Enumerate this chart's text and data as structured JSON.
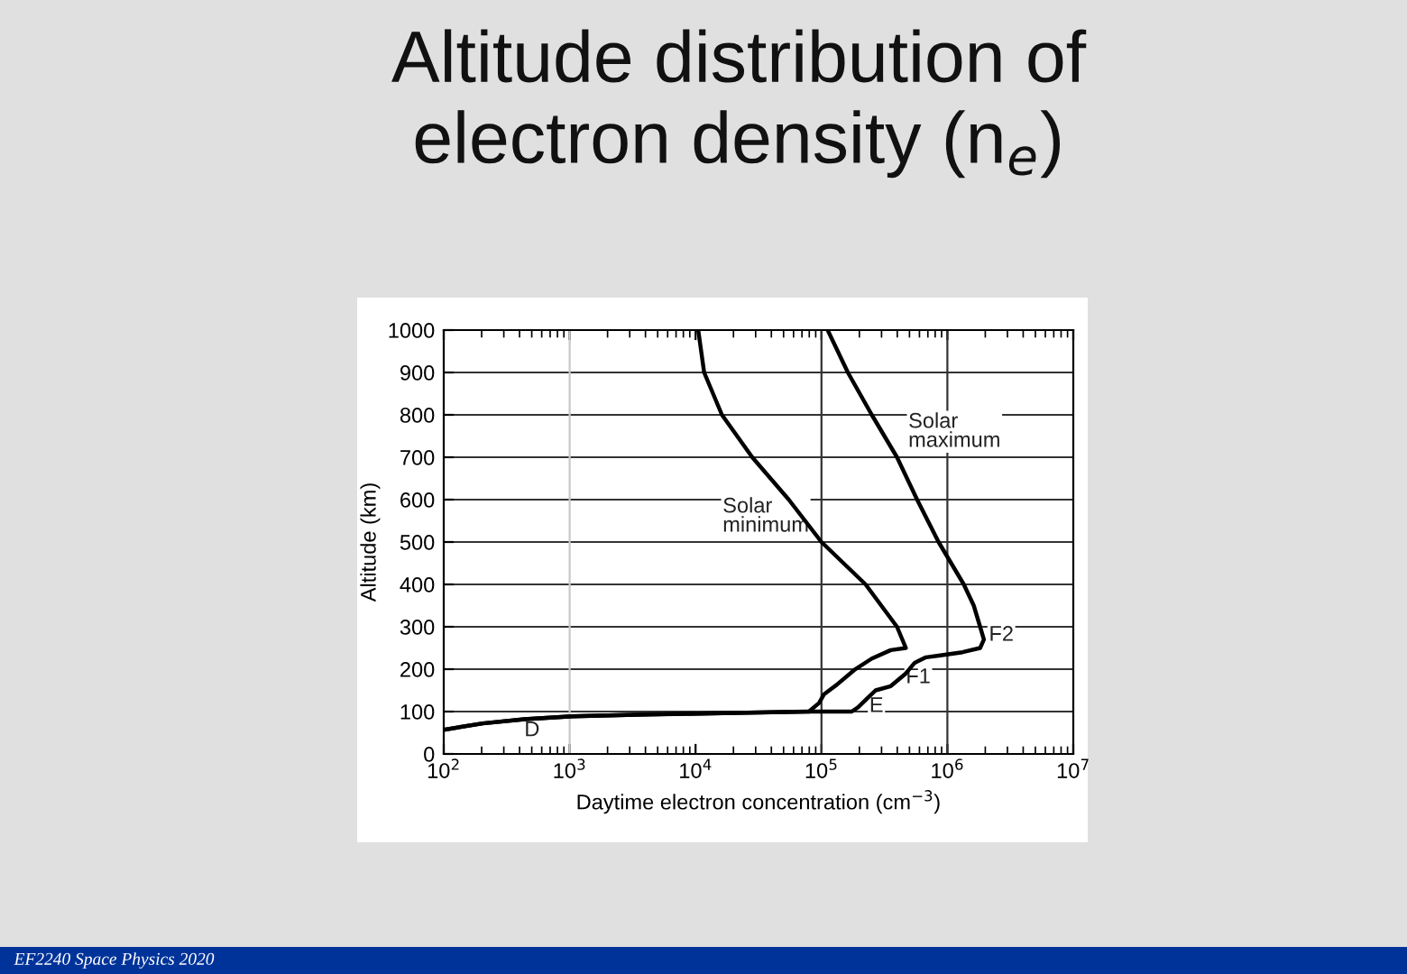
{
  "chart_data": {
    "type": "line",
    "title": "Altitude distribution of\nelectron density (n$_{e}$)",
    "xlabel": "Daytime electron concentration (cm$^{−3}$)",
    "ylabel": "Altitude (km)",
    "series": [
      {
        "color": "#000000",
        "x": [
          100,
          204,
          437,
          1050,
          3980,
          79400,
          95500,
          105000,
          132000,
          182000,
          251000,
          355000,
          468000,
          398000,
          224000,
          100000,
          55000,
          28200,
          16200,
          11700,
          10500
        ],
        "values": [
          57,
          72,
          82,
          89,
          93,
          100,
          120,
          141,
          163,
          198,
          225,
          245,
          250,
          300,
          400,
          500,
          600,
          700,
          800,
          900,
          1000
        ]
      },
      {
        "color": "#000000",
        "x": [
          100,
          204,
          437,
          1050,
          3980,
          75900,
          174000,
          195000,
          229000,
          269000,
          355000,
          468000,
          550000,
          676000,
          851000,
          1320000,
          1820000,
          1950000,
          1820000,
          1620000,
          1350000,
          851000,
          575000,
          398000,
          251000,
          162000,
          112000
        ],
        "values": [
          57,
          72,
          82,
          89,
          93,
          100,
          100,
          110,
          130,
          150,
          160,
          190,
          215,
          228,
          232,
          240,
          250,
          270,
          300,
          350,
          400,
          500,
          600,
          700,
          800,
          900,
          1000
        ]
      }
    ],
    "log": "x",
    "xlim": [
      100,
      10000000
    ],
    "xticks": [
      {
        "value": 100,
        "label": "10$^{2}$"
      },
      {
        "value": 1000,
        "label": "10$^{3}$"
      },
      {
        "value": 10000,
        "label": "10$^{4}$"
      },
      {
        "value": 100000,
        "label": "10$^{5}$"
      },
      {
        "value": 1000000,
        "label": "10$^{6}$"
      },
      {
        "value": 10000000,
        "label": "10$^{7}$"
      }
    ],
    "ylim": [
      0,
      1000
    ],
    "yticks": [
      0,
      100,
      200,
      300,
      400,
      500,
      600,
      700,
      800,
      900,
      1000
    ],
    "grid": "y",
    "ref_lines": [
      {
        "axis": "x",
        "value": 1000,
        "color": "#c8c8c8"
      },
      {
        "axis": "x",
        "value": 100000,
        "color": "#333333"
      },
      {
        "axis": "x",
        "value": 1000000,
        "color": "#333333"
      }
    ],
    "annotations": [
      "Solar\nminimum",
      "Solar\nmaximum",
      "D",
      "E",
      "F1",
      "F2",
      "EF2240 Space Physics 2020"
    ]
  }
}
